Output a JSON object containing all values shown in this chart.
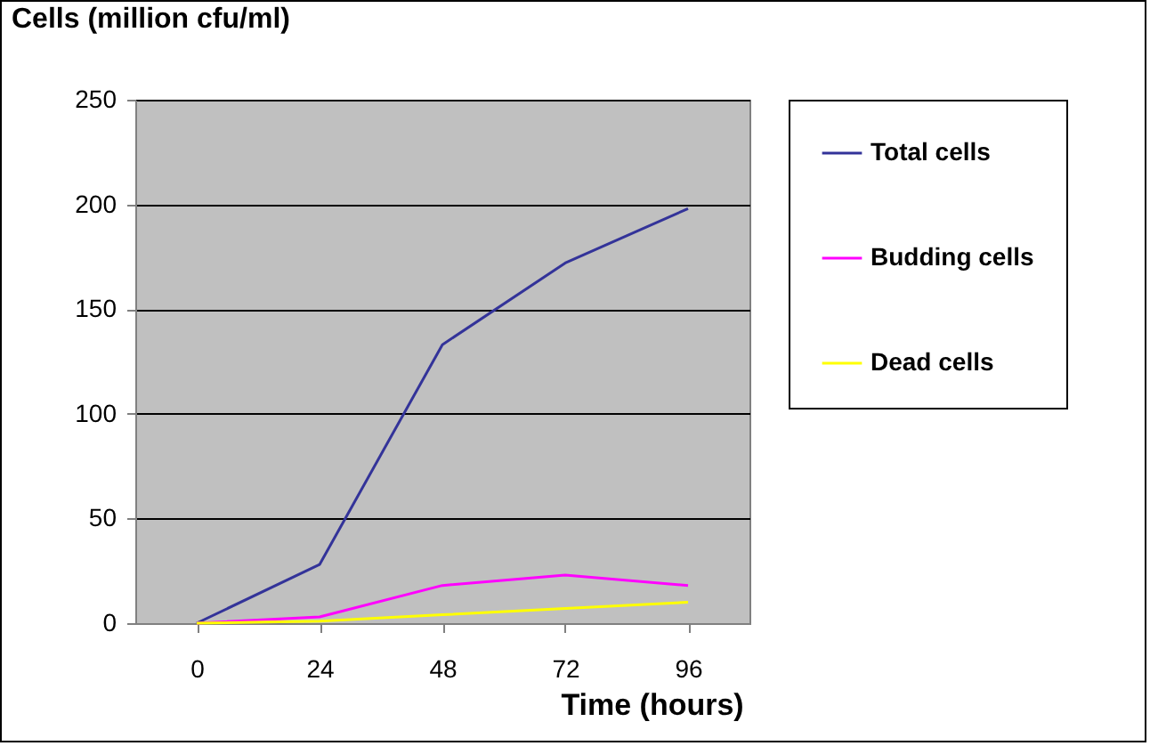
{
  "chart_data": {
    "type": "line",
    "ylabel": "Cells (million cfu/ml)",
    "xlabel": "Time (hours)",
    "categories": [
      "0",
      "24",
      "48",
      "72",
      "96"
    ],
    "series": [
      {
        "name": "Total cells",
        "color": "#333399",
        "values": [
          0,
          28,
          133,
          172,
          198
        ]
      },
      {
        "name": "Budding cells",
        "color": "#ff00ff",
        "values": [
          0,
          3,
          18,
          23,
          18
        ]
      },
      {
        "name": "Dead cells",
        "color": "#ffff00",
        "values": [
          0,
          1,
          4,
          7,
          10
        ]
      }
    ],
    "ylim": [
      0,
      250
    ],
    "yticks": [
      0,
      50,
      100,
      150,
      200,
      250
    ],
    "grid": "y",
    "legend": "right",
    "marker": "none",
    "line_style": "solid"
  }
}
